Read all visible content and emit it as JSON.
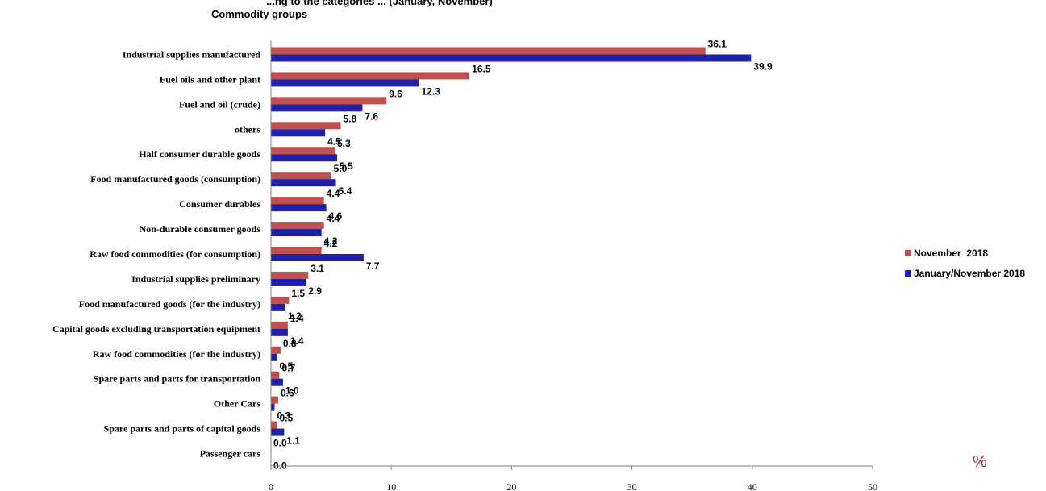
{
  "chart_data": {
    "type": "bar",
    "orientation": "horizontal",
    "title": "...ng to the categories ... (January, November)",
    "category_axis_label": "Commodity groups",
    "unit_label": "%",
    "xlim": [
      0,
      50
    ],
    "x_ticks": [
      0,
      10,
      20,
      30,
      40,
      50
    ],
    "grid": false,
    "legend_position": "right",
    "categories": [
      "Industrial supplies manufactured",
      "Fuel oils and other plant",
      "Fuel and oil (crude)",
      "others",
      "Half consumer durable goods",
      "Food manufactured goods (consumption)",
      "Consumer durables",
      "Non-durable consumer goods",
      "Raw food commodities (for consumption)",
      "Industrial supplies preliminary",
      "Food manufactured goods (for the industry)",
      "Capital goods excluding transportation equipment",
      "Raw food commodities (for the industry)",
      "Spare parts and parts for transportation",
      "Other Cars",
      "Spare parts and parts of capital goods",
      "Passenger cars"
    ],
    "series": [
      {
        "name": "November  2018",
        "color": "#c0504d",
        "values": [
          36.1,
          16.5,
          9.6,
          5.8,
          5.3,
          5.0,
          4.4,
          4.4,
          4.2,
          3.1,
          1.5,
          1.4,
          0.8,
          0.7,
          0.6,
          0.5,
          0.0
        ],
        "labels": [
          "36.1",
          "16.5",
          "9.6",
          "5.8",
          "5.3",
          "5.0",
          "4.4",
          "4.4",
          "4.2",
          "3.1",
          "1.5",
          "1.4",
          "0.8",
          "0.7",
          "0.6",
          "0.5",
          "0.0"
        ]
      },
      {
        "name": "January/November 2018",
        "color": "#1f1fa8",
        "values": [
          39.9,
          12.3,
          7.6,
          4.5,
          5.5,
          5.4,
          4.6,
          4.2,
          7.7,
          2.9,
          1.2,
          1.4,
          0.5,
          1.0,
          0.3,
          1.1,
          0.0
        ],
        "labels": [
          "39.9",
          "12.3",
          "7.6",
          "4.5",
          "5.5",
          "5.4",
          "4.6",
          "4.2",
          "7.7",
          "2.9",
          "1.2",
          "1.4",
          "0.5",
          "1.0",
          "0.3",
          "1.1",
          "0.0"
        ]
      }
    ]
  }
}
